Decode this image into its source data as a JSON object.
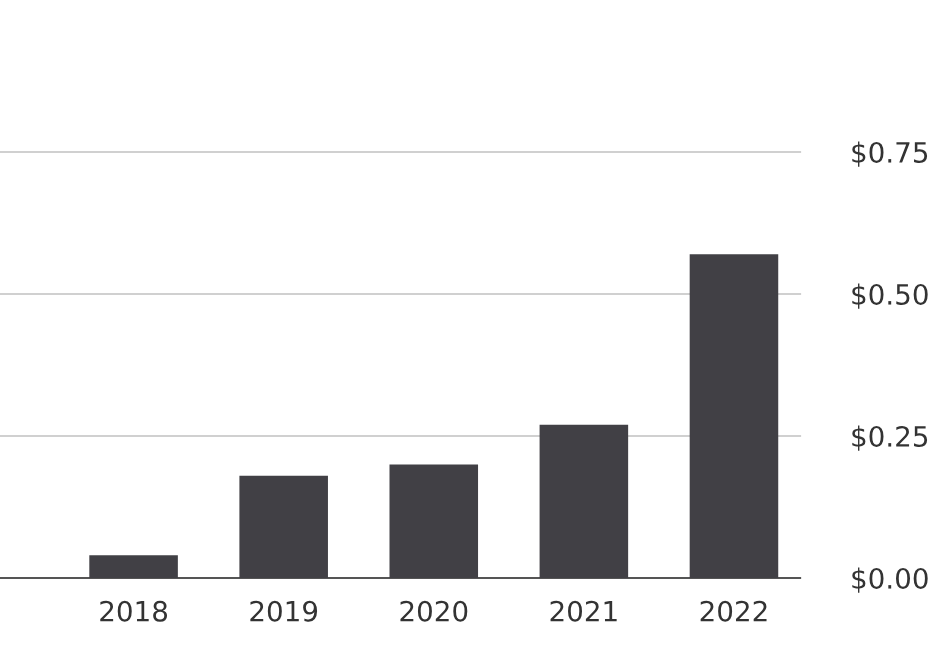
{
  "chart_data": {
    "type": "bar",
    "categories": [
      "2018",
      "2019",
      "2020",
      "2021",
      "2022"
    ],
    "values": [
      0.04,
      0.18,
      0.2,
      0.27,
      0.57
    ],
    "color": "#414045",
    "ylim": [
      0,
      0.75
    ],
    "yticks": [
      {
        "value": 0,
        "label": "$0.00"
      },
      {
        "value": 0.25,
        "label": "$0.25"
      },
      {
        "value": 0.5,
        "label": "$0.50"
      },
      {
        "value": 0.75,
        "label": "$0.75"
      }
    ],
    "grid": "y",
    "legend": false
  }
}
